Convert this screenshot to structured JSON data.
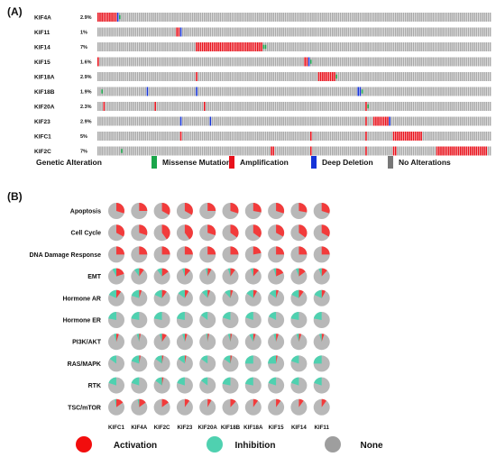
{
  "panel_a_label": "(A)",
  "panel_b_label": "(B)",
  "chart_data": [
    {
      "type": "table",
      "genes": [
        {
          "name": "KIF4A",
          "percent": "2.9%",
          "amp": [
            0,
            1,
            2,
            3,
            4,
            5,
            6,
            7,
            8,
            9
          ],
          "del": [
            10
          ],
          "mis": [
            11
          ]
        },
        {
          "name": "KIF11",
          "percent": "1%",
          "amp": [
            40,
            41
          ],
          "del": [
            42
          ],
          "mis": []
        },
        {
          "name": "KIF14",
          "percent": "7%",
          "amp": [
            50,
            51,
            52,
            53,
            54,
            55,
            56,
            57,
            58,
            59,
            60,
            61,
            62,
            63,
            64,
            65,
            66,
            67,
            68,
            69,
            70,
            71,
            72,
            73,
            74,
            75,
            76,
            77,
            78,
            79,
            80,
            81,
            82,
            83
          ],
          "del": [],
          "mis": [
            84,
            85
          ]
        },
        {
          "name": "KIF15",
          "percent": "1.6%",
          "amp": [
            0,
            105,
            106
          ],
          "del": [
            107
          ],
          "mis": [
            108
          ]
        },
        {
          "name": "KIF18A",
          "percent": "2.9%",
          "amp": [
            50,
            112,
            113,
            114,
            115,
            116,
            117,
            118,
            119,
            120
          ],
          "del": [],
          "mis": [
            121
          ]
        },
        {
          "name": "KIF18B",
          "percent": "1.9%",
          "amp": [],
          "del": [
            25,
            50,
            132,
            133
          ],
          "mis": [
            2,
            134
          ]
        },
        {
          "name": "KIF20A",
          "percent": "2.3%",
          "amp": [
            3,
            29,
            54,
            136
          ],
          "del": [],
          "mis": [
            137
          ]
        },
        {
          "name": "KIF23",
          "percent": "2.9%",
          "amp": [
            136,
            140,
            141,
            142,
            143,
            144,
            145,
            146,
            147
          ],
          "del": [
            42,
            57,
            148
          ],
          "mis": []
        },
        {
          "name": "KIFC1",
          "percent": "5%",
          "amp": [
            42,
            108,
            136,
            150,
            151,
            152,
            153,
            154,
            155,
            156,
            157,
            158,
            159,
            160,
            161,
            162,
            163,
            164
          ],
          "del": [],
          "mis": []
        },
        {
          "name": "KIF2C",
          "percent": "7%",
          "amp": [
            88,
            89,
            108,
            136,
            150,
            151,
            172,
            173,
            174,
            175,
            176,
            177,
            178,
            179,
            180,
            181,
            182,
            183,
            184,
            185,
            186,
            187,
            188,
            189,
            190,
            191,
            192,
            193,
            194,
            195,
            196,
            197
          ],
          "del": [],
          "mis": [
            12
          ]
        }
      ],
      "n_samples": 200,
      "colors": {
        "missense": "#1aa64a",
        "amplification": "#e8111b",
        "deletion": "#1533d8",
        "none": "#a9a9a9"
      },
      "legend_title": "Genetic Alteration",
      "legend": [
        {
          "label": "Missense Mutation",
          "color": "#1aa64a"
        },
        {
          "label": "Amplification",
          "color": "#e8111b"
        },
        {
          "label": "Deep Deletion",
          "color": "#1533d8"
        },
        {
          "label": "No Alterations",
          "color": "#777777"
        }
      ]
    },
    {
      "type": "pie",
      "columns": [
        "KIFC1",
        "KIF4A",
        "KIF2C",
        "KIF23",
        "KIF20A",
        "KIF18B",
        "KIF18A",
        "KIF15",
        "KIF14",
        "KIF11"
      ],
      "rows": [
        "Apoptosis",
        "Cell Cycle",
        "DNA Damage Response",
        "EMT",
        "Hormone AR",
        "Hormone ER",
        "PI3K/AKT",
        "RAS/MAPK",
        "RTK",
        "TSC/mTOR"
      ],
      "colors": {
        "activation": "#f23b3b",
        "inhibition": "#4fd1b0",
        "none": "#b8b8b8"
      },
      "values": [
        [
          [
            0.3,
            0
          ],
          [
            0.25,
            0
          ],
          [
            0.33,
            0
          ],
          [
            0.33,
            0
          ],
          [
            0.25,
            0
          ],
          [
            0.3,
            0
          ],
          [
            0.28,
            0
          ],
          [
            0.3,
            0
          ],
          [
            0.28,
            0
          ],
          [
            0.3,
            0
          ]
        ],
        [
          [
            0.33,
            0
          ],
          [
            0.3,
            0
          ],
          [
            0.4,
            0
          ],
          [
            0.4,
            0
          ],
          [
            0.3,
            0
          ],
          [
            0.35,
            0
          ],
          [
            0.35,
            0
          ],
          [
            0.33,
            0
          ],
          [
            0.35,
            0
          ],
          [
            0.33,
            0
          ]
        ],
        [
          [
            0.25,
            0
          ],
          [
            0.25,
            0
          ],
          [
            0.25,
            0
          ],
          [
            0.25,
            0
          ],
          [
            0.25,
            0
          ],
          [
            0.25,
            0
          ],
          [
            0.22,
            0
          ],
          [
            0.25,
            0
          ],
          [
            0.25,
            0
          ],
          [
            0.25,
            0
          ]
        ],
        [
          [
            0.2,
            0.08
          ],
          [
            0.1,
            0.1
          ],
          [
            0.15,
            0.1
          ],
          [
            0.12,
            0.05
          ],
          [
            0.08,
            0.04
          ],
          [
            0.1,
            0.05
          ],
          [
            0.12,
            0.05
          ],
          [
            0.18,
            0.05
          ],
          [
            0.15,
            0.06
          ],
          [
            0.12,
            0.06
          ]
        ],
        [
          [
            0.1,
            0.18
          ],
          [
            0.05,
            0.2
          ],
          [
            0.1,
            0.18
          ],
          [
            0.08,
            0.15
          ],
          [
            0.05,
            0.12
          ],
          [
            0.05,
            0.12
          ],
          [
            0.08,
            0.15
          ],
          [
            0.05,
            0.15
          ],
          [
            0.1,
            0.18
          ],
          [
            0.08,
            0.18
          ]
        ],
        [
          [
            0,
            0.22
          ],
          [
            0,
            0.22
          ],
          [
            0,
            0.22
          ],
          [
            0,
            0.22
          ],
          [
            0,
            0.15
          ],
          [
            0,
            0.2
          ],
          [
            0,
            0.2
          ],
          [
            0,
            0.18
          ],
          [
            0,
            0.22
          ],
          [
            0,
            0.22
          ]
        ],
        [
          [
            0.05,
            0.05
          ],
          [
            0.03,
            0.05
          ],
          [
            0.1,
            0.05
          ],
          [
            0.05,
            0.05
          ],
          [
            0.03,
            0.03
          ],
          [
            0.03,
            0.05
          ],
          [
            0.05,
            0.08
          ],
          [
            0.05,
            0.05
          ],
          [
            0.05,
            0.05
          ],
          [
            0.05,
            0.05
          ]
        ],
        [
          [
            0,
            0.15
          ],
          [
            0.03,
            0.2
          ],
          [
            0.03,
            0.15
          ],
          [
            0.03,
            0.15
          ],
          [
            0,
            0.15
          ],
          [
            0.03,
            0.15
          ],
          [
            0,
            0.25
          ],
          [
            0.03,
            0.25
          ],
          [
            0,
            0.2
          ],
          [
            0,
            0.25
          ]
        ],
        [
          [
            0,
            0.2
          ],
          [
            0,
            0.2
          ],
          [
            0.03,
            0.15
          ],
          [
            0,
            0.2
          ],
          [
            0,
            0.15
          ],
          [
            0,
            0.22
          ],
          [
            0,
            0.22
          ],
          [
            0,
            0.2
          ],
          [
            0,
            0.2
          ],
          [
            0,
            0.2
          ]
        ],
        [
          [
            0.15,
            0.03
          ],
          [
            0.15,
            0.03
          ],
          [
            0.15,
            0
          ],
          [
            0.1,
            0
          ],
          [
            0.08,
            0
          ],
          [
            0.12,
            0
          ],
          [
            0.1,
            0
          ],
          [
            0.1,
            0
          ],
          [
            0.1,
            0
          ],
          [
            0.1,
            0
          ]
        ]
      ],
      "legend": [
        {
          "label": "Activation",
          "color": "#f20d0d"
        },
        {
          "label": "Inhibition",
          "color": "#4fd1b0"
        },
        {
          "label": "None",
          "color": "#9e9e9e"
        }
      ]
    }
  ]
}
